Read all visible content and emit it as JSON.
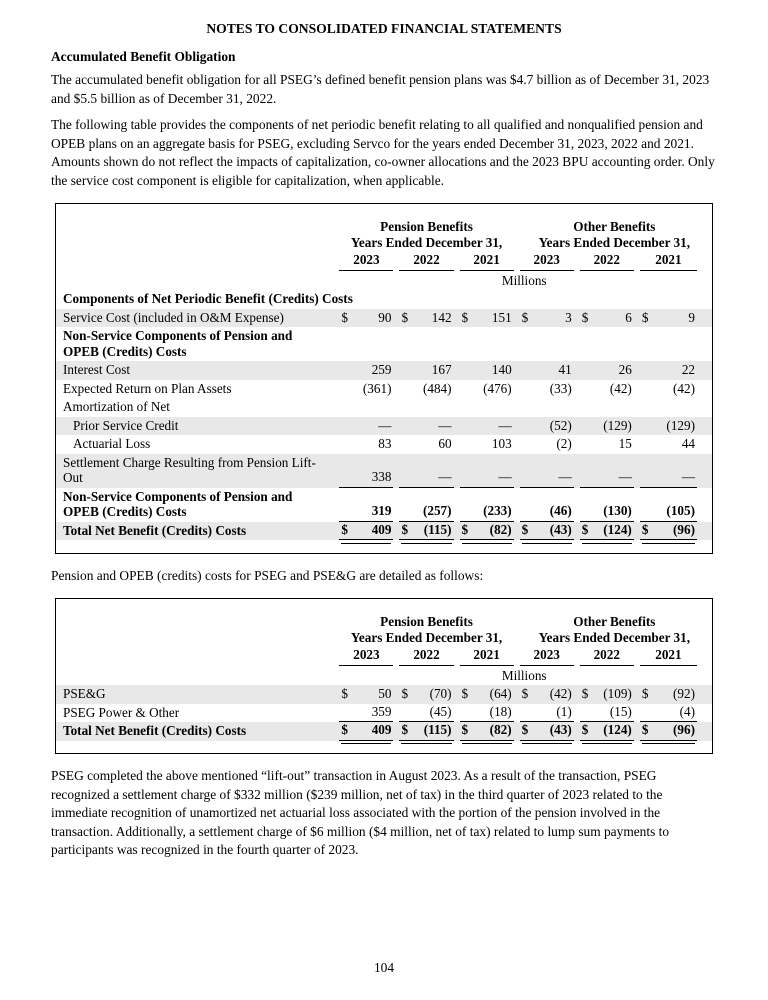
{
  "page": {
    "title": "NOTES TO CONSOLIDATED FINANCIAL STATEMENTS",
    "section_heading": "Accumulated Benefit Obligation",
    "para1": "The accumulated benefit obligation for all PSEG’s defined benefit pension plans was $4.7 billion as of December 31, 2023 and $5.5 billion as of December 31, 2022.",
    "para2": "The following table provides the components of net periodic benefit relating to all qualified and nonqualified pension and OPEB plans on an aggregate basis for PSEG, excluding Servco for the years ended December 31, 2023, 2022 and 2021. Amounts shown do not reflect the impacts of capitalization, co-owner allocations and the 2023 BPU accounting order. Only the service cost component is eligible for capitalization, when applicable.",
    "para3": "Pension and OPEB (credits) costs for PSEG and PSE&G are detailed as follows:",
    "para4": "PSEG completed the above mentioned “lift-out” transaction in August 2023. As a result of the transaction, PSEG recognized a settlement charge of $332 million ($239 million, net of tax) in the third quarter of 2023 related to the immediate recognition of unamortized net actuarial loss associated with the portion of the pension involved in the transaction. Additionally, a settlement charge of $6 million ($4 million, net of tax) related to lump sum payments to participants was recognized in the fourth quarter of 2023.",
    "page_number": "104"
  },
  "colors": {
    "row_shade": "#e8e8e8",
    "text": "#000000",
    "border": "#000000"
  },
  "table1": {
    "group_headers": [
      {
        "title": "Pension Benefits",
        "subtitle": "Years Ended December 31,"
      },
      {
        "title": "Other Benefits",
        "subtitle": "Years Ended December 31,"
      }
    ],
    "years": [
      "2023",
      "2022",
      "2021",
      "2023",
      "2022",
      "2021"
    ],
    "unit_label": "Millions",
    "rows": [
      {
        "label": "Components of Net Periodic Benefit (Credits) Costs",
        "bold": true,
        "header": true
      },
      {
        "label": "Service Cost (included in O&M Expense)",
        "shaded": true,
        "dollar": true,
        "values": [
          "90",
          "142",
          "151",
          "3",
          "6",
          "9"
        ]
      },
      {
        "label_lines": [
          "Non-Service Components of Pension and",
          "OPEB (Credits) Costs"
        ],
        "bold": true,
        "header": true
      },
      {
        "label": "Interest Cost",
        "shaded": true,
        "values": [
          "259",
          "167",
          "140",
          "41",
          "26",
          "22"
        ]
      },
      {
        "label": "Expected Return on Plan Assets",
        "values": [
          "(361)",
          "(484)",
          "(476)",
          "(33)",
          "(42)",
          "(42)"
        ]
      },
      {
        "label": "Amortization of Net",
        "header": true
      },
      {
        "label": "Prior Service Credit",
        "indent": true,
        "shaded": true,
        "values": [
          "—",
          "—",
          "—",
          "(52)",
          "(129)",
          "(129)"
        ]
      },
      {
        "label": "Actuarial Loss",
        "indent": true,
        "values": [
          "83",
          "60",
          "103",
          "(2)",
          "15",
          "44"
        ]
      },
      {
        "label_lines": [
          "Settlement Charge Resulting from Pension Lift-",
          "Out"
        ],
        "shaded": true,
        "underline": "single",
        "values": [
          "338",
          "—",
          "—",
          "—",
          "—",
          "—"
        ]
      },
      {
        "label_lines": [
          "Non-Service Components of Pension and",
          "OPEB (Credits) Costs"
        ],
        "bold": true,
        "bold_values": true,
        "underline": "single",
        "values": [
          "319",
          "(257)",
          "(233)",
          "(46)",
          "(130)",
          "(105)"
        ]
      },
      {
        "label": "Total Net Benefit (Credits) Costs",
        "bold": true,
        "bold_values": true,
        "shaded": true,
        "dollar": true,
        "underline": "double",
        "values": [
          "409",
          "(115)",
          "(82)",
          "(43)",
          "(124)",
          "(96)"
        ]
      }
    ]
  },
  "table2": {
    "group_headers": [
      {
        "title": "Pension Benefits",
        "subtitle": "Years Ended December 31,"
      },
      {
        "title": "Other Benefits",
        "subtitle": "Years Ended December 31,"
      }
    ],
    "years": [
      "2023",
      "2022",
      "2021",
      "2023",
      "2022",
      "2021"
    ],
    "unit_label": "Millions",
    "rows": [
      {
        "label": "PSE&G",
        "shaded": true,
        "dollar": true,
        "values": [
          "50",
          "(70)",
          "(64)",
          "(42)",
          "(109)",
          "(92)"
        ]
      },
      {
        "label": "PSEG Power & Other",
        "underline": "single",
        "values": [
          "359",
          "(45)",
          "(18)",
          "(1)",
          "(15)",
          "(4)"
        ]
      },
      {
        "label": "Total Net Benefit (Credits) Costs",
        "bold": true,
        "bold_values": true,
        "shaded": true,
        "dollar": true,
        "underline": "double",
        "values": [
          "409",
          "(115)",
          "(82)",
          "(43)",
          "(124)",
          "(96)"
        ]
      }
    ]
  }
}
